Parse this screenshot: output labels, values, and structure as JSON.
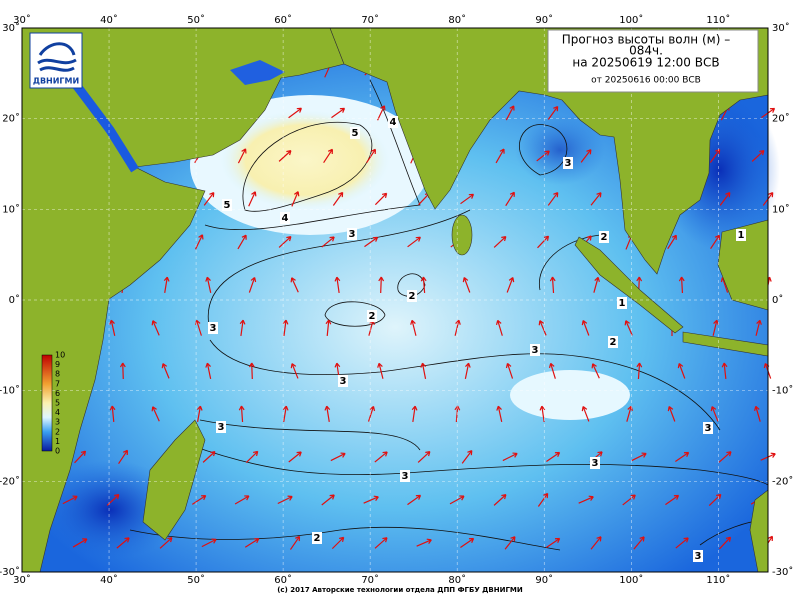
{
  "header": {
    "title_line1": "Прогноз высоты волн (м) –",
    "title_line2": "084ч.",
    "valid_time": "на 20250619 12:00 ВСВ",
    "base_time": "от 20250616 00:00 ВСВ"
  },
  "logo": {
    "text": "ДВНИГМИ"
  },
  "map": {
    "lonlim": [
      30,
      115.7
    ],
    "latlim": [
      -30,
      30
    ],
    "lonticks": [
      {
        "value": 30,
        "label": "30˚"
      },
      {
        "value": 40,
        "label": "40˚"
      },
      {
        "value": 50,
        "label": "50˚"
      },
      {
        "value": 60,
        "label": "60˚"
      },
      {
        "value": 70,
        "label": "70˚"
      },
      {
        "value": 80,
        "label": "80˚"
      },
      {
        "value": 90,
        "label": "90˚"
      },
      {
        "value": 100,
        "label": "100˚"
      },
      {
        "value": 110,
        "label": "110˚"
      }
    ],
    "latticks": [
      {
        "value": 30,
        "label": "30˚"
      },
      {
        "value": 20,
        "label": "20˚"
      },
      {
        "value": 10,
        "label": "10˚"
      },
      {
        "value": 0,
        "label": "0˚"
      },
      {
        "value": -10,
        "label": "-10˚"
      },
      {
        "value": -20,
        "label": "-20˚"
      },
      {
        "value": -30,
        "label": "-30˚"
      }
    ],
    "contour_labels": [
      "5",
      "4",
      "5",
      "4",
      "3",
      "3",
      "2",
      "2",
      "3",
      "2",
      "1",
      "3",
      "3",
      "3",
      "3",
      "3",
      "3",
      "2",
      "3",
      "2",
      "1"
    ]
  },
  "colorbar": {
    "ticks": [
      10,
      9,
      8,
      7,
      6,
      5,
      4,
      3,
      2,
      1,
      0
    ]
  },
  "footer": {
    "text": "(с) 2017 Авторские технологии отдела ДПП ФГБУ ДВНИГМИ"
  }
}
